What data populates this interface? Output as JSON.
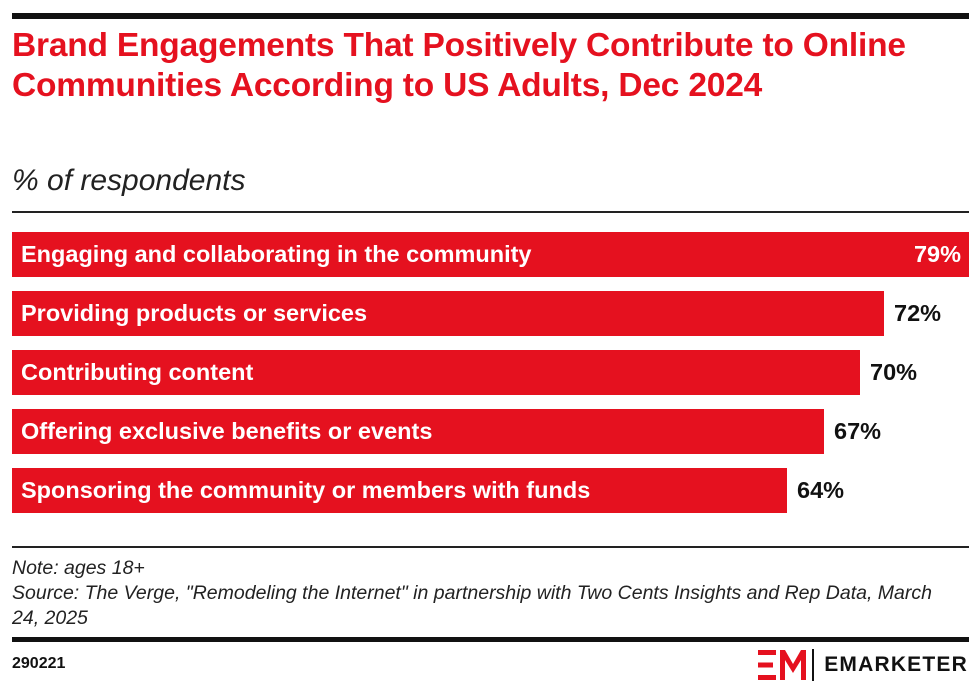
{
  "header": {
    "title": "Brand Engagements That Positively Contribute to Online Communities According to US Adults, Dec 2024",
    "subtitle": "% of respondents"
  },
  "chart_data": {
    "type": "bar",
    "orientation": "horizontal",
    "title": "Brand Engagements That Positively Contribute to Online Communities According to US Adults, Dec 2024",
    "subtitle": "% of respondents",
    "categories": [
      "Engaging and collaborating in the community",
      "Providing products or services",
      "Contributing content",
      "Offering exclusive benefits or events",
      "Sponsoring the community or members with funds"
    ],
    "values": [
      79,
      72,
      70,
      67,
      64
    ],
    "value_labels": [
      "79%",
      "72%",
      "70%",
      "67%",
      "64%"
    ],
    "xlim": [
      0,
      79
    ],
    "grid": false,
    "bar_color": "#e5111f"
  },
  "footer": {
    "note": "Note: ages 18+",
    "source": "Source: The Verge, \"Remodeling the Internet\" in partnership with Two Cents Insights and Rep Data, March 24, 2025",
    "chart_id": "290221",
    "brand": "EMARKETER",
    "brand_icon": "em-logo-icon",
    "brand_color": "#e5111f"
  }
}
